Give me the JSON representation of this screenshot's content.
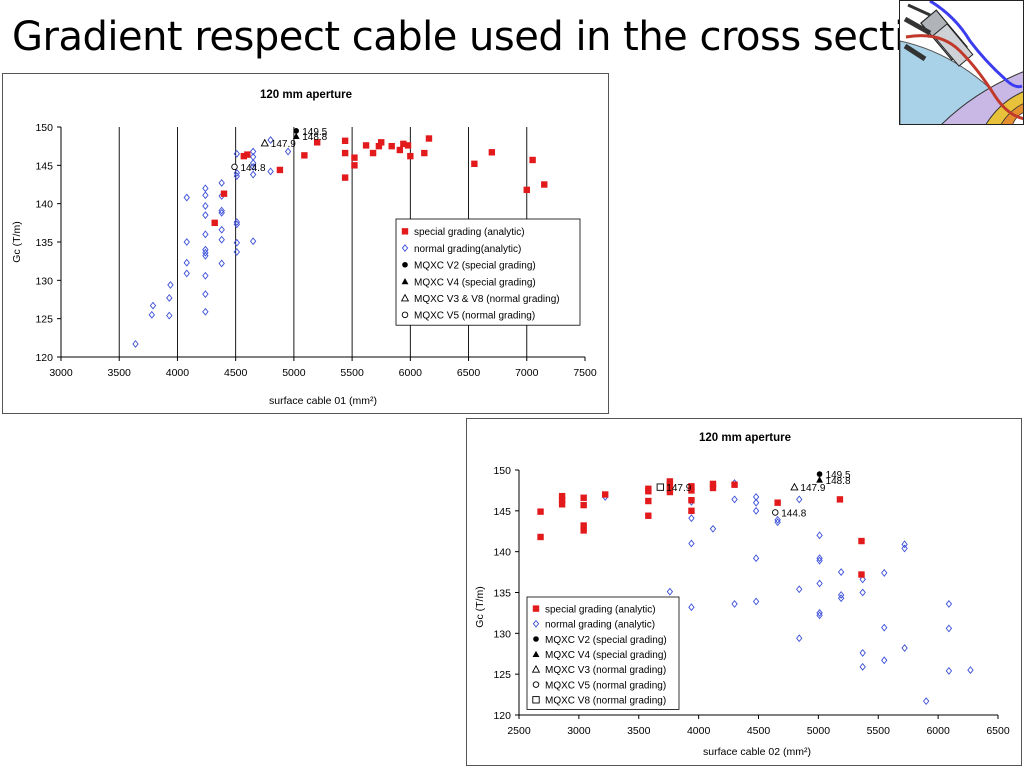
{
  "slide": {
    "title": "Gradient respect cable used in the cross section"
  },
  "thumbnail": {
    "icon": "magnet-cross-section-icon"
  },
  "colors": {
    "special": "#e31a1c",
    "normal": "#3b4fd9",
    "mqxc": "#000000"
  },
  "chart_data": [
    {
      "type": "scatter",
      "title": "120 mm aperture",
      "xlabel": "surface cable 01 (mm²)",
      "ylabel": "Gc (T/m)",
      "xlim": [
        3000,
        7500
      ],
      "ylim": [
        120,
        150
      ],
      "xticks": [
        3000,
        3500,
        4000,
        4500,
        5000,
        5500,
        6000,
        6500,
        7000,
        7500
      ],
      "yticks": [
        120,
        125,
        130,
        135,
        140,
        145,
        150
      ],
      "grid": "vertical",
      "legend_position": "right",
      "series": [
        {
          "name": "special grading (analytic)",
          "marker": "square-filled",
          "color": "#e31a1c",
          "points": [
            [
              4320,
              137.5
            ],
            [
              4400,
              141.3
            ],
            [
              4570,
              146.2
            ],
            [
              4600,
              146.4
            ],
            [
              4880,
              144.4
            ],
            [
              5090,
              146.3
            ],
            [
              5200,
              148.0
            ],
            [
              5440,
              143.4
            ],
            [
              5440,
              146.6
            ],
            [
              5440,
              148.2
            ],
            [
              5520,
              145.0
            ],
            [
              5520,
              146.0
            ],
            [
              5620,
              147.6
            ],
            [
              5680,
              146.6
            ],
            [
              5730,
              147.5
            ],
            [
              5750,
              148.0
            ],
            [
              5840,
              147.5
            ],
            [
              5910,
              147.0
            ],
            [
              5940,
              147.8
            ],
            [
              5980,
              147.6
            ],
            [
              6000,
              146.2
            ],
            [
              6120,
              146.6
            ],
            [
              6160,
              148.5
            ],
            [
              6550,
              145.2
            ],
            [
              6700,
              146.7
            ],
            [
              7000,
              141.8
            ],
            [
              7050,
              145.7
            ],
            [
              7150,
              142.5
            ]
          ]
        },
        {
          "name": "normal grading(analytic)",
          "marker": "diamond-open",
          "color": "#3b4fd9",
          "points": [
            [
              3640,
              121.7
            ],
            [
              3780,
              125.5
            ],
            [
              3790,
              126.7
            ],
            [
              3930,
              125.4
            ],
            [
              3930,
              127.7
            ],
            [
              3940,
              129.4
            ],
            [
              4080,
              140.8
            ],
            [
              4080,
              135.0
            ],
            [
              4080,
              132.3
            ],
            [
              4080,
              130.9
            ],
            [
              4240,
              142.0
            ],
            [
              4240,
              141.1
            ],
            [
              4240,
              139.7
            ],
            [
              4240,
              138.5
            ],
            [
              4240,
              136.0
            ],
            [
              4240,
              134.0
            ],
            [
              4240,
              133.6
            ],
            [
              4240,
              133.2
            ],
            [
              4240,
              130.6
            ],
            [
              4240,
              128.2
            ],
            [
              4240,
              125.9
            ],
            [
              4380,
              142.7
            ],
            [
              4380,
              141.0
            ],
            [
              4380,
              139.1
            ],
            [
              4380,
              138.8
            ],
            [
              4380,
              136.6
            ],
            [
              4380,
              135.3
            ],
            [
              4380,
              132.2
            ],
            [
              4510,
              146.5
            ],
            [
              4510,
              144.0
            ],
            [
              4510,
              143.6
            ],
            [
              4510,
              137.6
            ],
            [
              4510,
              137.3
            ],
            [
              4510,
              134.9
            ],
            [
              4510,
              133.7
            ],
            [
              4650,
              146.8
            ],
            [
              4650,
              146.1
            ],
            [
              4650,
              145.3
            ],
            [
              4650,
              144.8
            ],
            [
              4650,
              143.8
            ],
            [
              4650,
              135.1
            ],
            [
              4800,
              148.3
            ],
            [
              4800,
              144.2
            ],
            [
              4950,
              146.8
            ]
          ]
        },
        {
          "name": "MQXC V2 (special grading)",
          "marker": "circle-filled",
          "color": "#000000",
          "points": [
            [
              5020,
              149.5
            ]
          ],
          "labels": [
            "149.5"
          ]
        },
        {
          "name": "MQXC V4 (special grading)",
          "marker": "triangle-filled",
          "color": "#000000",
          "points": [
            [
              5020,
              148.8
            ]
          ],
          "labels": [
            "148.8"
          ]
        },
        {
          "name": "MQXC V3 & V8 (normal grading)",
          "marker": "triangle-open",
          "color": "#000000",
          "points": [
            [
              4750,
              147.9
            ]
          ],
          "labels": [
            "147.9"
          ]
        },
        {
          "name": "MQXC V5 (normal grading)",
          "marker": "circle-open",
          "color": "#000000",
          "points": [
            [
              4490,
              144.8
            ]
          ],
          "labels": [
            "144.8"
          ]
        }
      ]
    },
    {
      "type": "scatter",
      "title": "120 mm aperture",
      "xlabel": "surface cable 02 (mm²)",
      "ylabel": "Gc (T/m)",
      "xlim": [
        2500,
        6500
      ],
      "ylim": [
        120,
        150
      ],
      "xticks": [
        2500,
        3000,
        3500,
        4000,
        4500,
        5000,
        5500,
        6000,
        6500
      ],
      "yticks": [
        120,
        125,
        130,
        135,
        140,
        145,
        150
      ],
      "grid": "none",
      "legend_position": "bottom-left",
      "series": [
        {
          "name": "special grading (analytic)",
          "marker": "square-filled",
          "color": "#e31a1c",
          "points": [
            [
              2680,
              141.8
            ],
            [
              2680,
              144.9
            ],
            [
              2860,
              145.8
            ],
            [
              2860,
              146.3
            ],
            [
              2860,
              146.8
            ],
            [
              3040,
              142.6
            ],
            [
              3040,
              143.2
            ],
            [
              3040,
              145.7
            ],
            [
              3040,
              146.6
            ],
            [
              3220,
              147.0
            ],
            [
              3580,
              144.4
            ],
            [
              3580,
              146.2
            ],
            [
              3580,
              147.4
            ],
            [
              3580,
              147.7
            ],
            [
              3760,
              147.3
            ],
            [
              3760,
              147.7
            ],
            [
              3760,
              148.2
            ],
            [
              3760,
              148.6
            ],
            [
              3940,
              145.0
            ],
            [
              3940,
              146.3
            ],
            [
              3940,
              147.5
            ],
            [
              3940,
              148.0
            ],
            [
              4120,
              147.8
            ],
            [
              4120,
              148.3
            ],
            [
              4300,
              148.2
            ],
            [
              4660,
              146.0
            ],
            [
              5180,
              146.4
            ],
            [
              5360,
              141.3
            ],
            [
              5360,
              137.2
            ]
          ]
        },
        {
          "name": "normal grading (analytic)",
          "marker": "diamond-open",
          "color": "#3b4fd9",
          "points": [
            [
              3220,
              146.7
            ],
            [
              3760,
              135.1
            ],
            [
              3940,
              141.0
            ],
            [
              3940,
              144.1
            ],
            [
              3940,
              146.1
            ],
            [
              3940,
              133.2
            ],
            [
              4120,
              142.8
            ],
            [
              4300,
              148.4
            ],
            [
              4300,
              146.4
            ],
            [
              4300,
              133.6
            ],
            [
              4480,
              146.7
            ],
            [
              4480,
              146.0
            ],
            [
              4480,
              145.0
            ],
            [
              4480,
              139.2
            ],
            [
              4480,
              133.9
            ],
            [
              4660,
              143.6
            ],
            [
              4660,
              143.9
            ],
            [
              4840,
              146.4
            ],
            [
              4840,
              135.4
            ],
            [
              4840,
              129.4
            ],
            [
              5010,
              142.0
            ],
            [
              5010,
              139.2
            ],
            [
              5010,
              138.9
            ],
            [
              5010,
              136.1
            ],
            [
              5010,
              132.5
            ],
            [
              5010,
              132.2
            ],
            [
              5190,
              137.5
            ],
            [
              5190,
              134.7
            ],
            [
              5190,
              134.3
            ],
            [
              5370,
              136.6
            ],
            [
              5370,
              135.0
            ],
            [
              5370,
              127.6
            ],
            [
              5370,
              125.9
            ],
            [
              5550,
              137.4
            ],
            [
              5550,
              130.7
            ],
            [
              5550,
              126.7
            ],
            [
              5720,
              140.9
            ],
            [
              5720,
              140.4
            ],
            [
              5720,
              128.2
            ],
            [
              5900,
              121.7
            ],
            [
              6090,
              133.6
            ],
            [
              6090,
              130.6
            ],
            [
              6090,
              125.4
            ],
            [
              6270,
              125.5
            ]
          ]
        },
        {
          "name": "MQXC V2 (special grading)",
          "marker": "circle-filled",
          "color": "#000000",
          "points": [
            [
              5010,
              149.5
            ]
          ],
          "labels": [
            "149.5"
          ]
        },
        {
          "name": "MQXC V4 (special grading)",
          "marker": "triangle-filled",
          "color": "#000000",
          "points": [
            [
              5010,
              148.8
            ]
          ],
          "labels": [
            "148.8"
          ]
        },
        {
          "name": "MQXC V3 (normal grading)",
          "marker": "triangle-open",
          "color": "#000000",
          "points": [
            [
              4800,
              147.9
            ]
          ],
          "labels": [
            "147.9"
          ]
        },
        {
          "name": "MQXC V5 (normal grading)",
          "marker": "circle-open",
          "color": "#000000",
          "points": [
            [
              4640,
              144.8
            ]
          ],
          "labels": [
            "144.8"
          ]
        },
        {
          "name": "MQXC V8 (normal grading)",
          "marker": "square-open",
          "color": "#000000",
          "points": [
            [
              3680,
              147.9
            ]
          ],
          "labels": [
            "147.9"
          ]
        }
      ]
    }
  ]
}
